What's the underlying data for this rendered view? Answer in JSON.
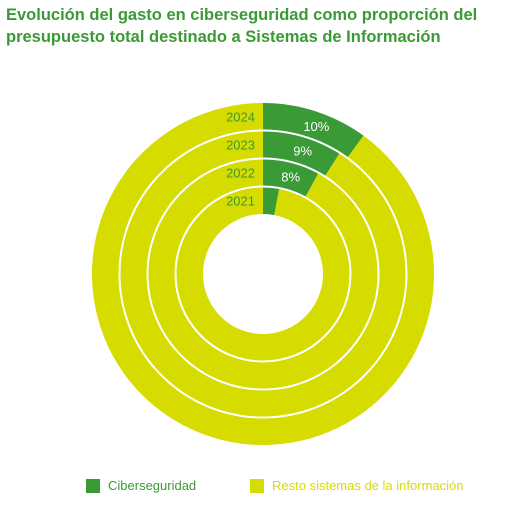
{
  "title": {
    "line1": "Evolución del gasto en ciberseguridad como proporción del",
    "line2": "presupuesto total destinado a Sistemas de Información"
  },
  "chart_data": {
    "type": "pie",
    "variant": "concentric-donut",
    "categories": [
      "2024",
      "2023",
      "2022",
      "2021"
    ],
    "series": [
      {
        "name": "Ciberseguridad",
        "values": [
          10,
          9,
          8,
          3
        ],
        "labels": [
          "10%",
          "9%",
          "8%",
          ""
        ],
        "color": "#3a9a35"
      },
      {
        "name": "Resto sistemas de la información",
        "values": [
          90,
          91,
          92,
          97
        ],
        "color": "#d6db00"
      }
    ],
    "value_unit": "%",
    "legend_position": "bottom"
  },
  "colors": {
    "title": "#3a9a35",
    "cyber": "#3a9a35",
    "rest": "#d6db00"
  }
}
